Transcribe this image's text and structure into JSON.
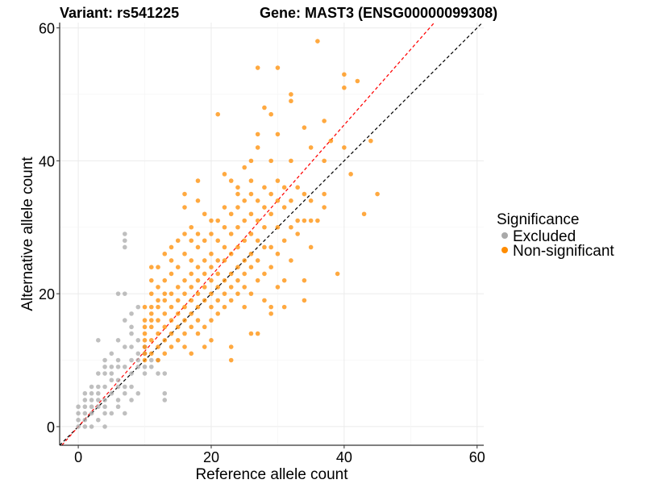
{
  "chart_data": {
    "type": "scatter",
    "title_left": "Variant: rs541225",
    "title_right": "Gene: MAST3 (ENSG00000099308)",
    "xlabel": "Reference allele count",
    "ylabel": "Alternative allele count",
    "xlim": [
      -2.8,
      61
    ],
    "ylim": [
      -2.8,
      60.8
    ],
    "xticks": [
      "0",
      "20",
      "40",
      "60"
    ],
    "yticks": [
      "0",
      "20",
      "40",
      "60"
    ],
    "grid": true,
    "legend": {
      "title": "Significance",
      "position": "right",
      "entries": [
        {
          "label": "Excluded",
          "color": "#a9a9a9"
        },
        {
          "label": "Non-significant",
          "color": "#ff8c00"
        }
      ]
    },
    "reference_lines": [
      {
        "name": "y = x",
        "slope": 1,
        "intercept": 0,
        "color": "#000000"
      },
      {
        "name": "fitted ratio",
        "slope": 1.135,
        "intercept": 0,
        "color": "#ff0000"
      }
    ],
    "series": [
      {
        "name": "Excluded",
        "color": "#a9a9a9",
        "points": [
          [
            0,
            0
          ],
          [
            0,
            1
          ],
          [
            0,
            3
          ],
          [
            1,
            0
          ],
          [
            1,
            1
          ],
          [
            1,
            2
          ],
          [
            1,
            3
          ],
          [
            1,
            4
          ],
          [
            2,
            0
          ],
          [
            2,
            2
          ],
          [
            2,
            3
          ],
          [
            2,
            4
          ],
          [
            2,
            5
          ],
          [
            3,
            1
          ],
          [
            3,
            3
          ],
          [
            3,
            4
          ],
          [
            3,
            5
          ],
          [
            3,
            6
          ],
          [
            4,
            0
          ],
          [
            4,
            2
          ],
          [
            4,
            3
          ],
          [
            4,
            4
          ],
          [
            4,
            6
          ],
          [
            4,
            8
          ],
          [
            4,
            9
          ],
          [
            5,
            2
          ],
          [
            5,
            5
          ],
          [
            5,
            7
          ],
          [
            5,
            8
          ],
          [
            5,
            9
          ],
          [
            6,
            3
          ],
          [
            6,
            4
          ],
          [
            6,
            6
          ],
          [
            6,
            7
          ],
          [
            6,
            9
          ],
          [
            6,
            10
          ],
          [
            6,
            13
          ],
          [
            6,
            20
          ],
          [
            7,
            2
          ],
          [
            7,
            5
          ],
          [
            7,
            6
          ],
          [
            7,
            9
          ],
          [
            7,
            12
          ],
          [
            7,
            16
          ],
          [
            7,
            20
          ],
          [
            7,
            27
          ],
          [
            7,
            28
          ],
          [
            7,
            29
          ],
          [
            8,
            4
          ],
          [
            8,
            6
          ],
          [
            8,
            8
          ],
          [
            8,
            10
          ],
          [
            8,
            14
          ],
          [
            8,
            15
          ],
          [
            8,
            17
          ],
          [
            9,
            5
          ],
          [
            9,
            9
          ],
          [
            9,
            10
          ],
          [
            9,
            11
          ],
          [
            9,
            13
          ],
          [
            9,
            18
          ],
          [
            10,
            8
          ],
          [
            10,
            9
          ],
          [
            10,
            11
          ],
          [
            10,
            12
          ],
          [
            11,
            9
          ],
          [
            11,
            10
          ],
          [
            12,
            8
          ],
          [
            12,
            10
          ],
          [
            13,
            4
          ],
          [
            13,
            5
          ],
          [
            13,
            8
          ],
          [
            4,
            10
          ],
          [
            3,
            8
          ],
          [
            2,
            6
          ],
          [
            5,
            11
          ],
          [
            3,
            13
          ],
          [
            1,
            5
          ],
          [
            0,
            2
          ],
          [
            8,
            12
          ]
        ]
      },
      {
        "name": "Non-significant",
        "color": "#ff8c00",
        "points": [
          [
            10,
            10
          ],
          [
            10,
            11
          ],
          [
            10,
            12
          ],
          [
            10,
            13
          ],
          [
            10,
            14
          ],
          [
            10,
            15
          ],
          [
            10,
            16
          ],
          [
            10,
            18
          ],
          [
            11,
            11
          ],
          [
            11,
            13
          ],
          [
            11,
            15
          ],
          [
            11,
            16
          ],
          [
            11,
            17
          ],
          [
            11,
            18
          ],
          [
            11,
            20
          ],
          [
            11,
            22
          ],
          [
            11,
            24
          ],
          [
            12,
            10
          ],
          [
            12,
            12
          ],
          [
            12,
            14
          ],
          [
            12,
            16
          ],
          [
            12,
            18
          ],
          [
            12,
            19
          ],
          [
            12,
            21
          ],
          [
            12,
            24
          ],
          [
            13,
            11
          ],
          [
            13,
            13
          ],
          [
            13,
            15
          ],
          [
            13,
            17
          ],
          [
            13,
            19
          ],
          [
            13,
            20
          ],
          [
            13,
            22
          ],
          [
            13,
            26
          ],
          [
            14,
            12
          ],
          [
            14,
            14
          ],
          [
            14,
            16
          ],
          [
            14,
            18
          ],
          [
            14,
            20
          ],
          [
            14,
            23
          ],
          [
            14,
            25
          ],
          [
            14,
            27
          ],
          [
            15,
            13
          ],
          [
            15,
            15
          ],
          [
            15,
            17
          ],
          [
            15,
            19
          ],
          [
            15,
            21
          ],
          [
            15,
            24
          ],
          [
            15,
            28
          ],
          [
            16,
            12
          ],
          [
            16,
            14
          ],
          [
            16,
            16
          ],
          [
            16,
            18
          ],
          [
            16,
            20
          ],
          [
            16,
            22
          ],
          [
            16,
            26
          ],
          [
            16,
            29
          ],
          [
            16,
            33
          ],
          [
            16,
            35
          ],
          [
            17,
            11
          ],
          [
            17,
            15
          ],
          [
            17,
            17
          ],
          [
            17,
            19
          ],
          [
            17,
            21
          ],
          [
            17,
            23
          ],
          [
            17,
            25
          ],
          [
            17,
            28
          ],
          [
            17,
            30
          ],
          [
            18,
            14
          ],
          [
            18,
            16
          ],
          [
            18,
            18
          ],
          [
            18,
            20
          ],
          [
            18,
            22
          ],
          [
            18,
            24
          ],
          [
            18,
            27
          ],
          [
            18,
            29
          ],
          [
            18,
            34
          ],
          [
            18,
            37
          ],
          [
            19,
            12
          ],
          [
            19,
            15
          ],
          [
            19,
            19
          ],
          [
            19,
            21
          ],
          [
            19,
            23
          ],
          [
            19,
            25
          ],
          [
            19,
            28
          ],
          [
            19,
            32
          ],
          [
            20,
            13
          ],
          [
            20,
            16
          ],
          [
            20,
            18
          ],
          [
            20,
            20
          ],
          [
            20,
            22
          ],
          [
            20,
            24
          ],
          [
            20,
            26
          ],
          [
            20,
            29
          ],
          [
            20,
            31
          ],
          [
            21,
            17
          ],
          [
            21,
            19
          ],
          [
            21,
            21
          ],
          [
            21,
            23
          ],
          [
            21,
            25
          ],
          [
            21,
            28
          ],
          [
            21,
            31
          ],
          [
            21,
            47
          ],
          [
            22,
            18
          ],
          [
            22,
            20
          ],
          [
            22,
            22
          ],
          [
            22,
            25
          ],
          [
            22,
            27
          ],
          [
            22,
            30
          ],
          [
            22,
            33
          ],
          [
            22,
            38
          ],
          [
            23,
            10
          ],
          [
            23,
            12
          ],
          [
            23,
            19
          ],
          [
            23,
            21
          ],
          [
            23,
            23
          ],
          [
            23,
            26
          ],
          [
            23,
            29
          ],
          [
            23,
            32
          ],
          [
            23,
            37
          ],
          [
            24,
            20
          ],
          [
            24,
            22
          ],
          [
            24,
            24
          ],
          [
            24,
            27
          ],
          [
            24,
            30
          ],
          [
            24,
            33
          ],
          [
            24,
            36
          ],
          [
            24,
            35
          ],
          [
            25,
            18
          ],
          [
            25,
            21
          ],
          [
            25,
            23
          ],
          [
            25,
            25
          ],
          [
            25,
            28
          ],
          [
            25,
            31
          ],
          [
            25,
            34
          ],
          [
            25,
            39
          ],
          [
            26,
            14
          ],
          [
            26,
            20
          ],
          [
            26,
            24
          ],
          [
            26,
            26
          ],
          [
            26,
            29
          ],
          [
            26,
            32
          ],
          [
            26,
            35
          ],
          [
            26,
            37
          ],
          [
            26,
            40
          ],
          [
            27,
            14
          ],
          [
            27,
            22
          ],
          [
            27,
            25
          ],
          [
            27,
            28
          ],
          [
            27,
            31
          ],
          [
            27,
            34
          ],
          [
            27,
            42
          ],
          [
            27,
            44
          ],
          [
            27,
            54
          ],
          [
            28,
            19
          ],
          [
            28,
            23
          ],
          [
            28,
            27
          ],
          [
            28,
            30
          ],
          [
            28,
            33
          ],
          [
            28,
            36
          ],
          [
            28,
            48
          ],
          [
            29,
            17
          ],
          [
            29,
            18
          ],
          [
            29,
            24
          ],
          [
            29,
            27
          ],
          [
            29,
            32
          ],
          [
            29,
            35
          ],
          [
            29,
            40
          ],
          [
            29,
            47
          ],
          [
            30,
            21
          ],
          [
            30,
            26
          ],
          [
            30,
            30
          ],
          [
            30,
            34
          ],
          [
            30,
            37
          ],
          [
            30,
            44
          ],
          [
            30,
            54
          ],
          [
            31,
            18
          ],
          [
            31,
            22
          ],
          [
            31,
            28
          ],
          [
            31,
            33
          ],
          [
            31,
            36
          ],
          [
            32,
            25
          ],
          [
            32,
            30
          ],
          [
            32,
            34
          ],
          [
            32,
            40
          ],
          [
            32,
            49
          ],
          [
            32,
            50
          ],
          [
            33,
            29
          ],
          [
            33,
            31
          ],
          [
            33,
            36
          ],
          [
            34,
            19
          ],
          [
            34,
            22
          ],
          [
            34,
            31
          ],
          [
            34,
            35
          ],
          [
            34,
            45
          ],
          [
            35,
            27
          ],
          [
            35,
            31
          ],
          [
            35,
            34
          ],
          [
            35,
            42
          ],
          [
            36,
            31
          ],
          [
            36,
            58
          ],
          [
            37,
            33
          ],
          [
            37,
            35
          ],
          [
            37,
            40
          ],
          [
            37,
            46
          ],
          [
            38,
            43
          ],
          [
            39,
            23
          ],
          [
            40,
            42
          ],
          [
            40,
            51
          ],
          [
            40,
            53
          ],
          [
            41,
            38
          ],
          [
            42,
            52
          ],
          [
            43,
            32
          ],
          [
            44,
            43
          ],
          [
            45,
            35
          ]
        ]
      }
    ]
  }
}
